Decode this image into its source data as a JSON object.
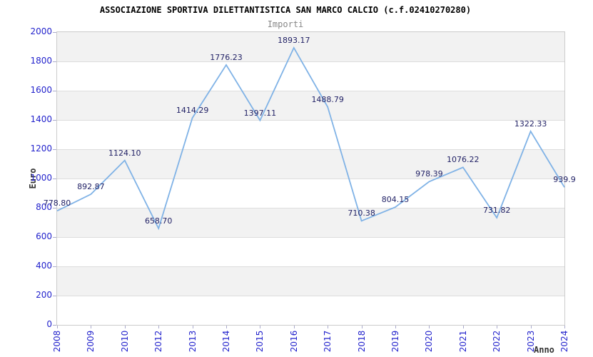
{
  "header": {
    "title": "ASSOCIAZIONE SPORTIVA DILETTANTISTICA SAN MARCO CALCIO (c.f.02410270280)",
    "subtitle": "Importi"
  },
  "chart_data": {
    "type": "line",
    "title": "ASSOCIAZIONE SPORTIVA DILETTANTISTICA SAN MARCO CALCIO (c.f.02410270280)",
    "subtitle": "Importi",
    "xlabel": "Anno",
    "ylabel": "Euro",
    "x": [
      "2008",
      "2009",
      "2010",
      "2012",
      "2013",
      "2014",
      "2015",
      "2016",
      "2017",
      "2018",
      "2019",
      "2020",
      "2021",
      "2022",
      "2023",
      "2024"
    ],
    "values": [
      778.8,
      892.87,
      1124.1,
      658.7,
      1414.29,
      1776.23,
      1397.11,
      1893.17,
      1488.79,
      710.38,
      804.15,
      978.39,
      1076.22,
      731.82,
      1322.33,
      939.9
    ],
    "point_labels": [
      "778.80",
      "892.87",
      "1124.10",
      "658.70",
      "1414.29",
      "1776.23",
      "1397.11",
      "1893.17",
      "1488.79",
      "710.38",
      "804.15",
      "978.39",
      "1076.22",
      "731.82",
      "1322.33",
      "939.9"
    ],
    "ylim": [
      0,
      2000
    ],
    "ytick_step": 200,
    "yticks": [
      "0",
      "200",
      "400",
      "600",
      "800",
      "1000",
      "1200",
      "1400",
      "1600",
      "1800",
      "2000"
    ],
    "grid": "alternating horizontal bands, light gridline every 200",
    "legend": "none",
    "colors": {
      "line": "#7fb2e6",
      "tick_labels": "#2222cc",
      "point_labels": "#222266",
      "band_gray": "#f2f2f2",
      "band_white": "#ffffff",
      "plot_border": "#cccccc",
      "gridline": "#dddddd",
      "tick_mark": "#aaaacc",
      "axis_title": "#333333",
      "subtitle": "#888888",
      "title": "#000000"
    }
  }
}
